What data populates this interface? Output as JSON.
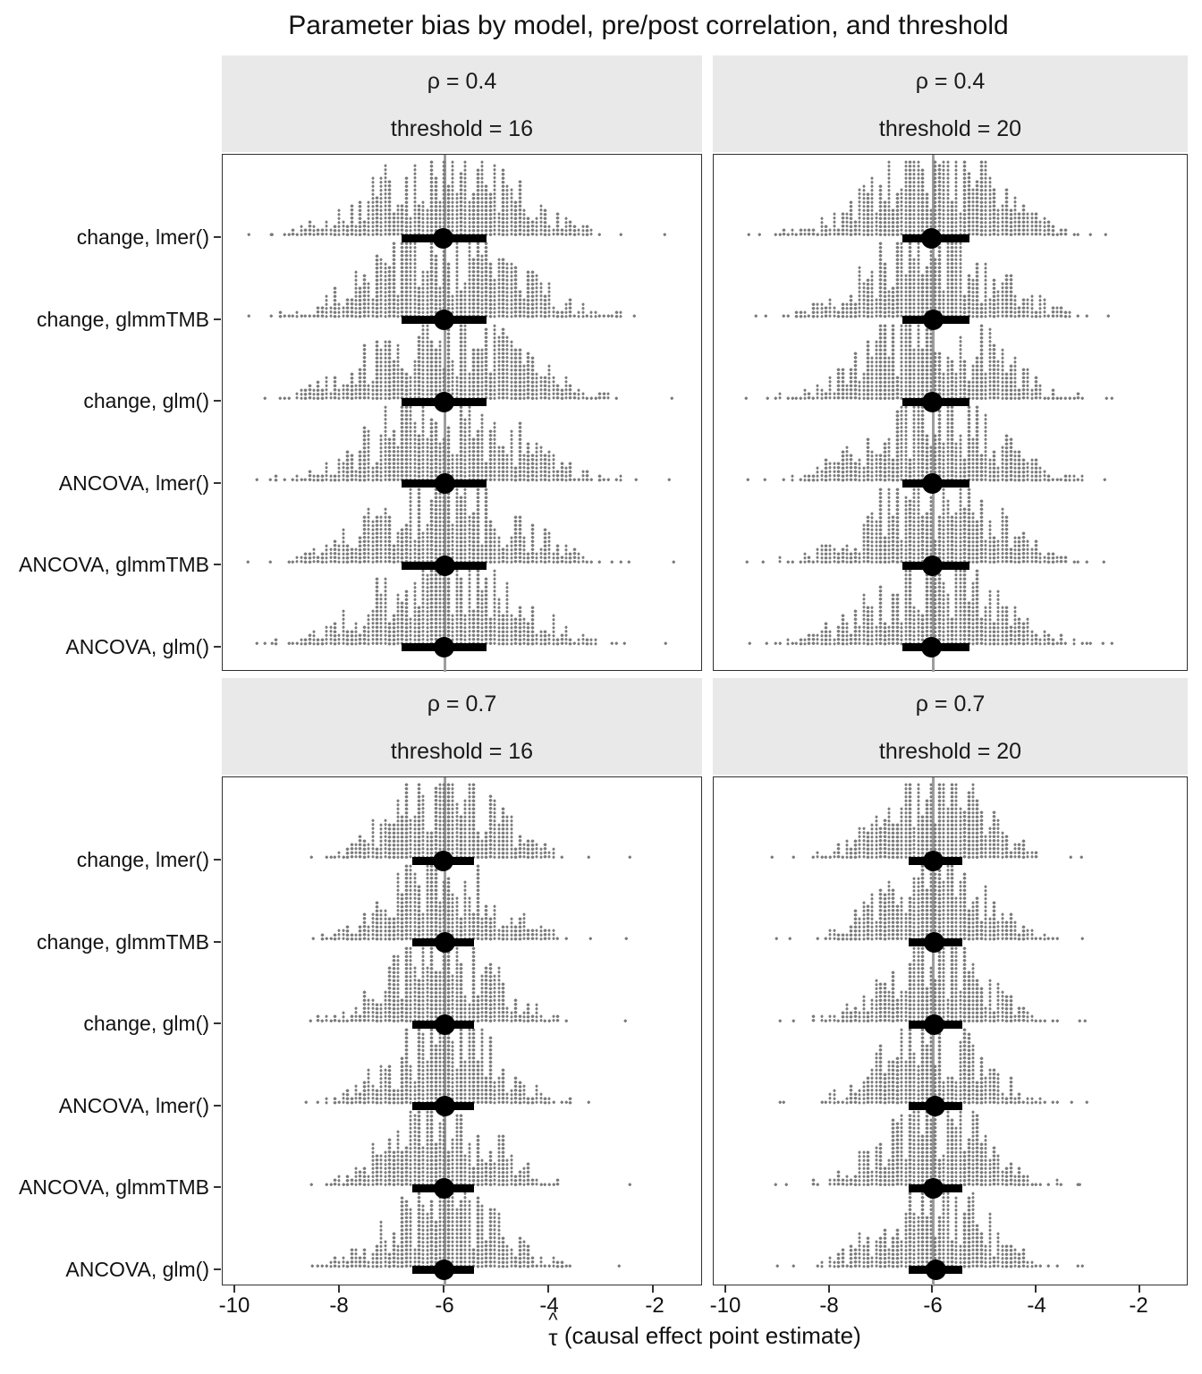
{
  "title": "Parameter bias by model, pre/post correlation, and threshold",
  "y_labels": [
    "change, lmer()",
    "change, glmmTMB",
    "change, glm()",
    "ANCOVA, lmer()",
    "ANCOVA, glmmTMB",
    "ANCOVA, glm()"
  ],
  "x_axis": {
    "ticks": [
      "-10",
      "-8",
      "-6",
      "-4",
      "-2"
    ],
    "tick_values": [
      -10,
      -8,
      -6,
      -4,
      -2
    ],
    "title_hat": "^",
    "title_tau": "τ",
    "title_rest": " (causal effect point estimate)"
  },
  "colors": {
    "histogram_dot": "#7c7c7c",
    "interval": "#000000",
    "reference_line": "#9e9e9e",
    "strip_background": "#e9e9e9",
    "panel_border": "#303030",
    "text": "#111111"
  },
  "chart_data": {
    "type": "dotplot-interval",
    "description": "Simulated sampling distributions (dot histograms) of the causal effect estimate with median point and interval, faceted by pre/post correlation rho (rows) and threshold (columns); 6 model specifications per panel.",
    "x_domain": [
      -10.24,
      -1.06
    ],
    "x_ticks": [
      -10,
      -8,
      -6,
      -4,
      -2
    ],
    "reference_line_x": -6,
    "models": [
      "change, lmer()",
      "change, glmmTMB",
      "change, glm()",
      "ANCOVA, lmer()",
      "ANCOVA, glmmTMB",
      "ANCOVA, glm()"
    ],
    "facets": [
      {
        "rho": "0.4",
        "threshold": "16",
        "strip_line1": "ρ = 0.4",
        "strip_line2": "threshold = 16",
        "center": -6.0,
        "sd": 1.32,
        "range": [
          -9.35,
          -2.6
        ],
        "outliers": [
          -9.67,
          -9.42,
          -2.45,
          -1.72
        ],
        "interval": [
          -6.82,
          -5.2
        ],
        "point": -6.0,
        "seed": 101
      },
      {
        "rho": "0.4",
        "threshold": "20",
        "strip_line1": "ρ = 0.4",
        "strip_line2": "threshold = 20",
        "center": -6.0,
        "sd": 1.18,
        "range": [
          -9.1,
          -2.9
        ],
        "outliers": [
          -9.5,
          -9.28,
          -2.7,
          -2.5
        ],
        "interval": [
          -6.6,
          -5.3
        ],
        "point": -6.02,
        "seed": 202
      },
      {
        "rho": "0.7",
        "threshold": "16",
        "strip_line1": "ρ = 0.7",
        "strip_line2": "threshold = 16",
        "center": -6.03,
        "sd": 0.98,
        "range": [
          -8.45,
          -3.55
        ],
        "outliers": [
          -8.6,
          -3.3,
          -2.55
        ],
        "interval": [
          -6.62,
          -5.44
        ],
        "point": -6.0,
        "seed": 303
      },
      {
        "rho": "0.7",
        "threshold": "20",
        "strip_line1": "ρ = 0.7",
        "strip_line2": "threshold = 20",
        "center": -6.0,
        "sd": 0.95,
        "range": [
          -8.35,
          -3.45
        ],
        "outliers": [
          -9.0,
          -8.8,
          -3.25,
          -3.05
        ],
        "interval": [
          -6.47,
          -5.43
        ],
        "point": -5.97,
        "seed": 404
      }
    ]
  }
}
